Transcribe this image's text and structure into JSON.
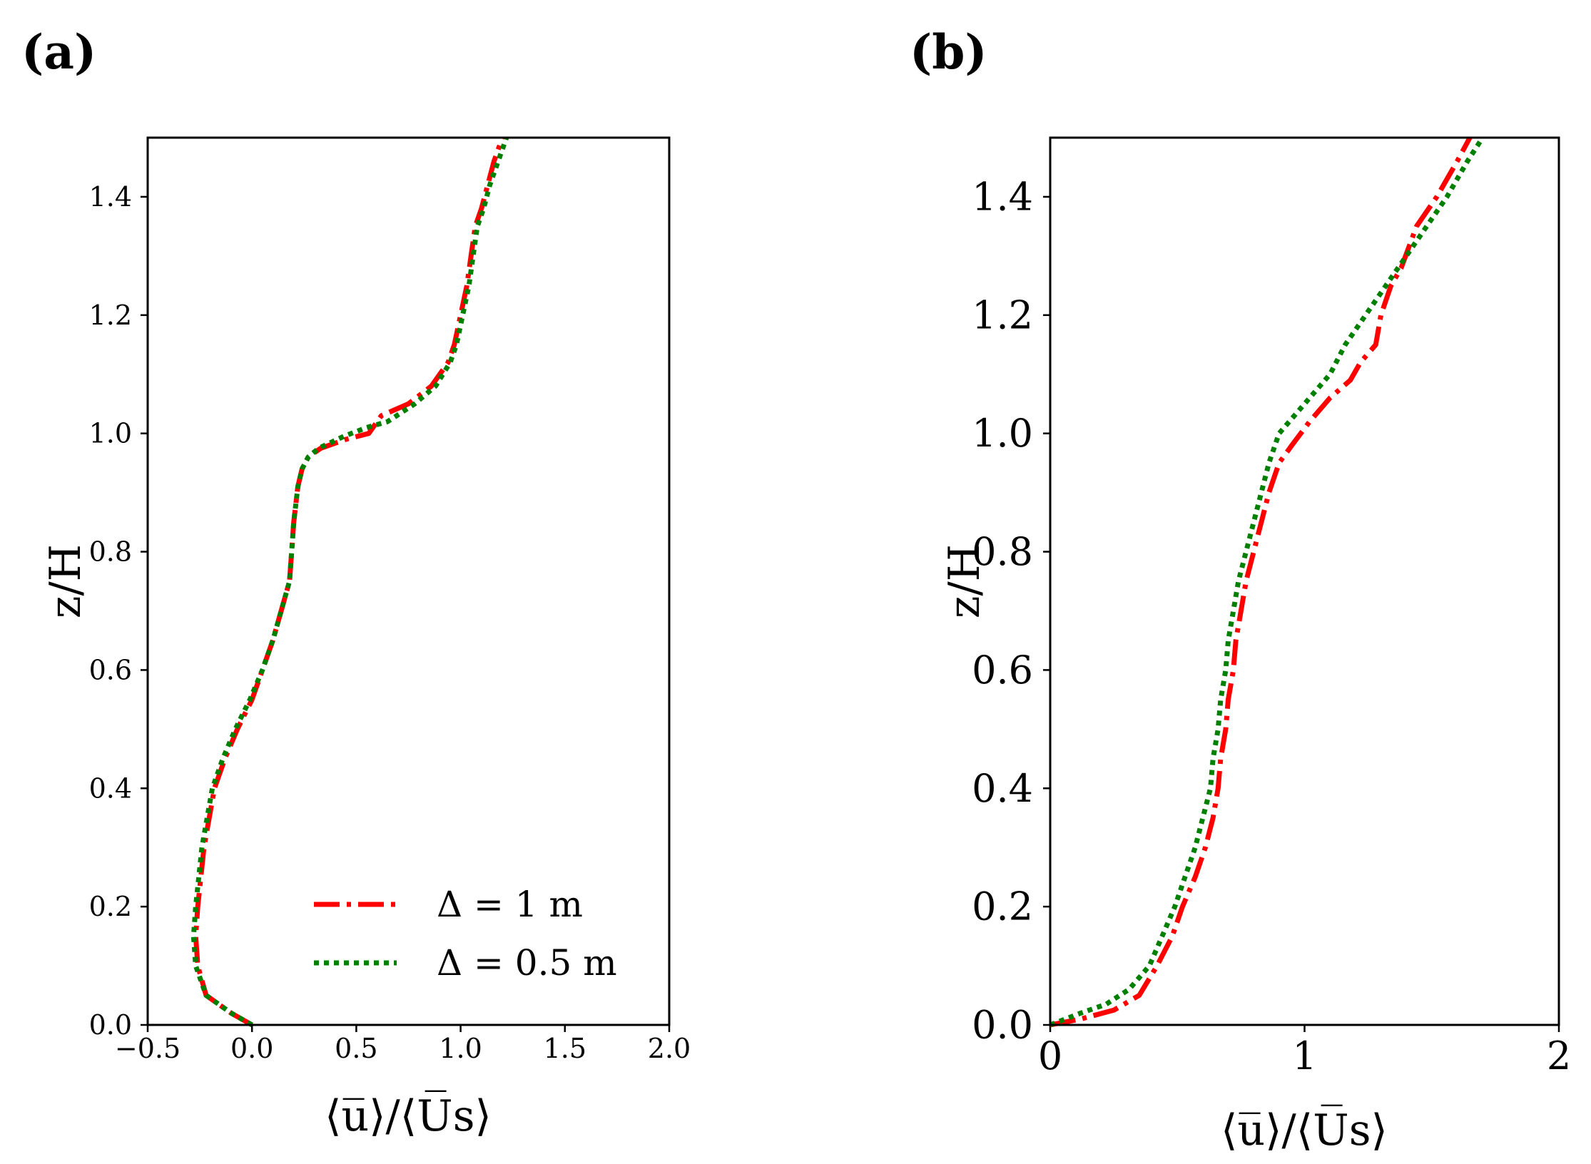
{
  "panels": [
    {
      "label": "(a)",
      "xlabel": "⟨u̅⟩/⟨U̅s⟩",
      "ylabel": "z/H"
    },
    {
      "label": "(b)",
      "xlabel": "⟨u̅⟩/⟨U̅s⟩",
      "ylabel": "z/H"
    }
  ],
  "legend": {
    "placement": "lower-right",
    "entries": [
      {
        "label": "Δ = 1 m",
        "color": "#ff0000",
        "style": "dash-dot"
      },
      {
        "label": "Δ = 0.5 m",
        "color": "#008000",
        "style": "dotted"
      }
    ]
  },
  "chart_data": [
    {
      "type": "line",
      "title": "(a)",
      "xlabel": "⟨u̅⟩/⟨U̅s⟩",
      "ylabel": "z/H",
      "xlim": [
        -0.5,
        2.0
      ],
      "ylim": [
        0.0,
        1.5
      ],
      "xticks": [
        -0.5,
        0.0,
        0.5,
        1.0,
        1.5,
        2.0
      ],
      "xtick_labels": [
        "−0.5",
        "0.0",
        "0.5",
        "1.0",
        "1.5",
        "2.0"
      ],
      "yticks": [
        0.0,
        0.2,
        0.4,
        0.6,
        0.8,
        1.0,
        1.2,
        1.4
      ],
      "ytick_labels": [
        "0.0",
        "0.2",
        "0.4",
        "0.6",
        "0.8",
        "1.0",
        "1.2",
        "1.4"
      ],
      "legend_position": "lower-right",
      "series": [
        {
          "name": "Δ = 1 m",
          "color": "#ff0000",
          "x": [
            0.0,
            -0.1,
            -0.22,
            -0.26,
            -0.27,
            -0.26,
            -0.23,
            -0.18,
            -0.13,
            -0.07,
            0.0,
            0.05,
            0.1,
            0.14,
            0.18,
            0.19,
            0.2,
            0.21,
            0.22,
            0.24,
            0.27,
            0.33,
            0.45,
            0.56,
            0.62,
            0.75,
            0.86,
            0.94,
            0.97,
            1.0,
            1.03,
            1.05,
            1.07,
            1.1,
            1.13,
            1.16,
            1.2
          ],
          "y": [
            0.0,
            0.02,
            0.05,
            0.1,
            0.15,
            0.2,
            0.3,
            0.4,
            0.45,
            0.5,
            0.55,
            0.6,
            0.65,
            0.7,
            0.75,
            0.8,
            0.85,
            0.88,
            0.91,
            0.94,
            0.96,
            0.975,
            0.99,
            1.0,
            1.03,
            1.05,
            1.08,
            1.12,
            1.15,
            1.2,
            1.25,
            1.3,
            1.35,
            1.38,
            1.42,
            1.46,
            1.5
          ]
        },
        {
          "name": "Δ = 0.5 m",
          "color": "#008000",
          "x": [
            0.0,
            -0.1,
            -0.22,
            -0.27,
            -0.28,
            -0.27,
            -0.24,
            -0.19,
            -0.14,
            -0.08,
            -0.01,
            0.05,
            0.1,
            0.14,
            0.18,
            0.19,
            0.2,
            0.21,
            0.22,
            0.24,
            0.27,
            0.32,
            0.44,
            0.55,
            0.65,
            0.78,
            0.88,
            0.95,
            0.98,
            1.01,
            1.04,
            1.06,
            1.08,
            1.11,
            1.14,
            1.18,
            1.22
          ],
          "y": [
            0.0,
            0.02,
            0.05,
            0.1,
            0.15,
            0.2,
            0.3,
            0.4,
            0.45,
            0.5,
            0.55,
            0.6,
            0.65,
            0.7,
            0.75,
            0.8,
            0.85,
            0.88,
            0.91,
            0.94,
            0.96,
            0.975,
            0.995,
            1.01,
            1.02,
            1.05,
            1.08,
            1.12,
            1.15,
            1.2,
            1.25,
            1.3,
            1.35,
            1.38,
            1.42,
            1.46,
            1.5
          ]
        }
      ]
    },
    {
      "type": "line",
      "title": "(b)",
      "xlabel": "⟨u̅⟩/⟨U̅s⟩",
      "ylabel": "z/H",
      "xlim": [
        0,
        2
      ],
      "ylim": [
        0.0,
        1.5
      ],
      "xticks": [
        0,
        1,
        2
      ],
      "xtick_labels": [
        "0",
        "1",
        "2"
      ],
      "yticks": [
        0.0,
        0.2,
        0.4,
        0.6,
        0.8,
        1.0,
        1.2,
        1.4
      ],
      "ytick_labels": [
        "0.0",
        "0.2",
        "0.4",
        "0.6",
        "0.8",
        "1.0",
        "1.2",
        "1.4"
      ],
      "series": [
        {
          "name": "Δ = 1 m",
          "color": "#ff0000",
          "x": [
            0.0,
            0.12,
            0.25,
            0.35,
            0.42,
            0.48,
            0.52,
            0.57,
            0.61,
            0.64,
            0.66,
            0.67,
            0.69,
            0.7,
            0.72,
            0.73,
            0.75,
            0.77,
            0.8,
            0.83,
            0.86,
            0.9,
            0.95,
            1.02,
            1.1,
            1.18,
            1.22,
            1.28,
            1.3,
            1.34,
            1.38,
            1.44,
            1.52,
            1.6,
            1.65
          ],
          "y": [
            0.0,
            0.01,
            0.025,
            0.05,
            0.1,
            0.15,
            0.2,
            0.25,
            0.3,
            0.35,
            0.4,
            0.45,
            0.5,
            0.55,
            0.6,
            0.65,
            0.7,
            0.75,
            0.8,
            0.85,
            0.9,
            0.95,
            0.98,
            1.02,
            1.06,
            1.09,
            1.12,
            1.15,
            1.2,
            1.25,
            1.28,
            1.35,
            1.4,
            1.46,
            1.5
          ]
        },
        {
          "name": "Δ = 0.5 m",
          "color": "#008000",
          "x": [
            0.0,
            0.12,
            0.22,
            0.31,
            0.39,
            0.44,
            0.49,
            0.53,
            0.57,
            0.6,
            0.63,
            0.64,
            0.66,
            0.67,
            0.69,
            0.7,
            0.72,
            0.74,
            0.77,
            0.8,
            0.83,
            0.86,
            0.9,
            1.0,
            1.1,
            1.16,
            1.24,
            1.32,
            1.4,
            1.48,
            1.56,
            1.64,
            1.7
          ],
          "y": [
            0.0,
            0.02,
            0.035,
            0.06,
            0.1,
            0.15,
            0.2,
            0.25,
            0.3,
            0.35,
            0.4,
            0.45,
            0.5,
            0.55,
            0.6,
            0.65,
            0.7,
            0.75,
            0.8,
            0.85,
            0.9,
            0.95,
            1.0,
            1.05,
            1.1,
            1.15,
            1.2,
            1.25,
            1.3,
            1.35,
            1.4,
            1.46,
            1.5
          ]
        }
      ]
    }
  ]
}
